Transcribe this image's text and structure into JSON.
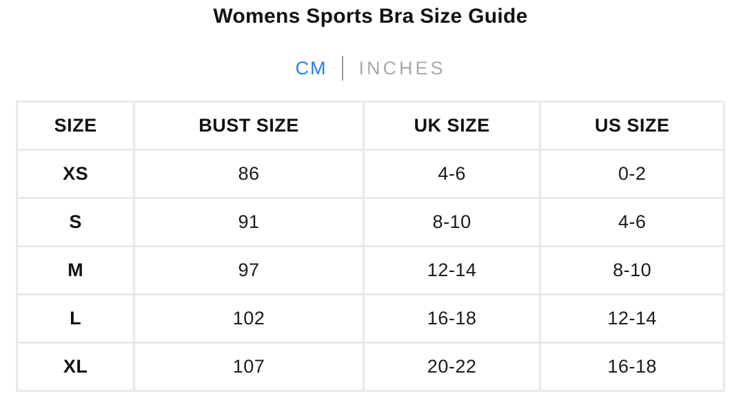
{
  "page": {
    "title": "Womens Sports Bra Size Guide"
  },
  "unit_toggle": {
    "cm_label": "CM",
    "inches_label": "INCHES",
    "active_unit": "CM",
    "active_color": "#2680eb",
    "inactive_color": "#a9a9a9"
  },
  "table": {
    "columns": [
      "SIZE",
      "BUST SIZE",
      "UK SIZE",
      "US SIZE"
    ],
    "rows": [
      {
        "size": "XS",
        "bust": "86",
        "uk": "4-6",
        "us": "0-2"
      },
      {
        "size": "S",
        "bust": "91",
        "uk": "8-10",
        "us": "4-6"
      },
      {
        "size": "M",
        "bust": "97",
        "uk": "12-14",
        "us": "8-10"
      },
      {
        "size": "L",
        "bust": "102",
        "uk": "16-18",
        "us": "12-14"
      },
      {
        "size": "XL",
        "bust": "107",
        "uk": "20-22",
        "us": "16-18"
      }
    ]
  }
}
